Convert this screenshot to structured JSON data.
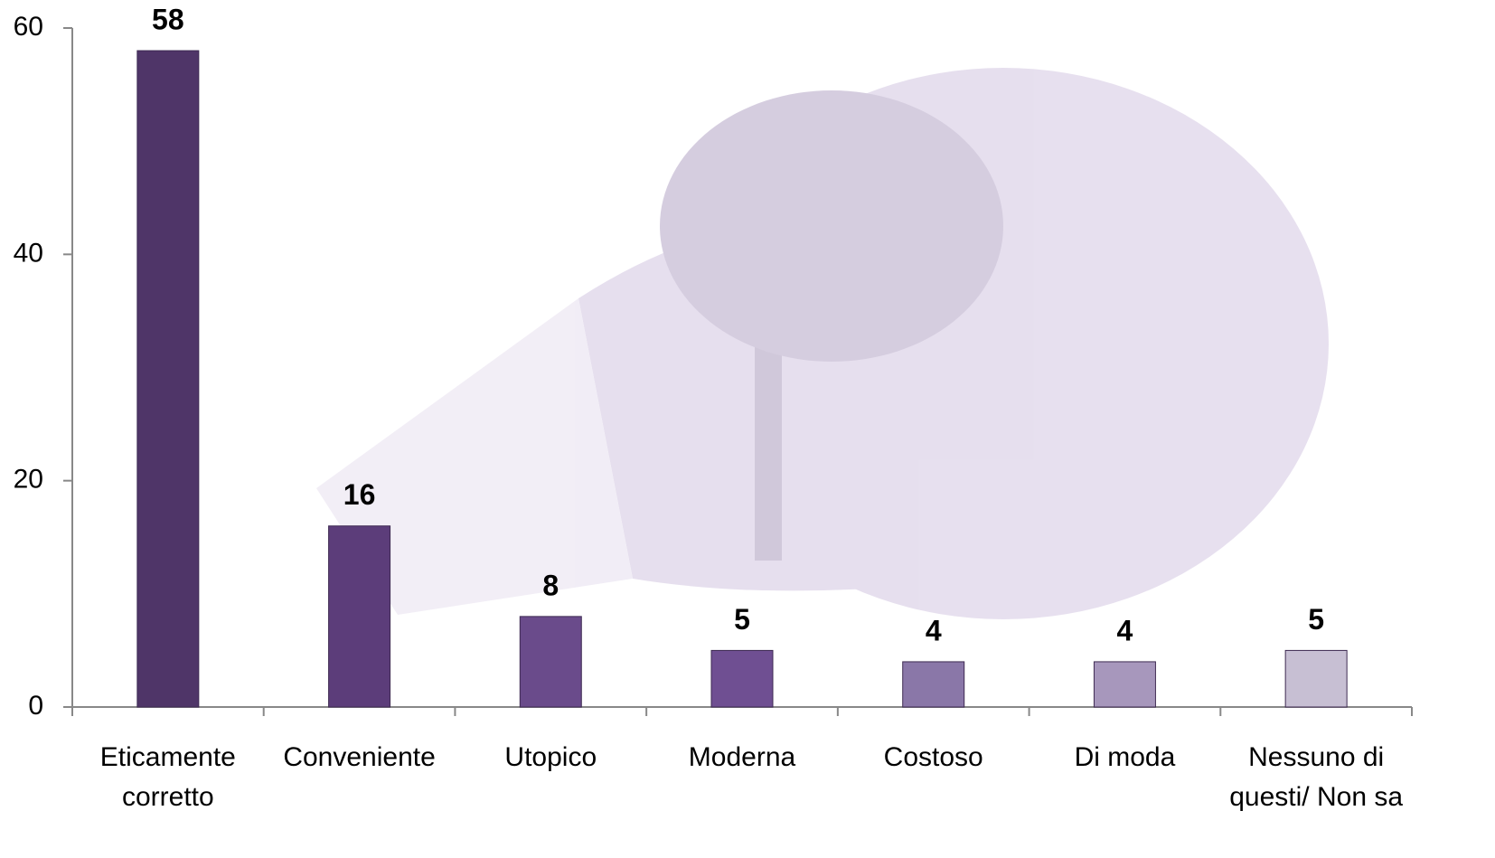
{
  "chart_data": {
    "type": "bar",
    "categories": [
      "Eticamente corretto",
      "Conveniente",
      "Utopico",
      "Moderna",
      "Costoso",
      "Di moda",
      "Nessuno di questi/ Non sa"
    ],
    "values": [
      58,
      16,
      8,
      5,
      4,
      4,
      5
    ],
    "colors": [
      "#4f3568",
      "#5c3d7a",
      "#6a4b8b",
      "#6f4f92",
      "#8a77a8",
      "#a797bc",
      "#c7bfd3"
    ],
    "ylim": [
      0,
      60
    ],
    "yticks": [
      0,
      20,
      40,
      60
    ],
    "grid": false
  }
}
